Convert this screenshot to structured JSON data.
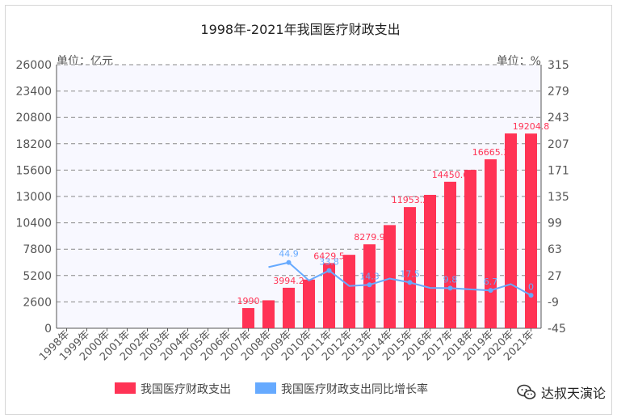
{
  "chart_data": {
    "type": "bar",
    "title": "1998年-2021年我国医疗财政支出",
    "left_unit": "单位：亿元",
    "right_unit": "单位：%",
    "categories": [
      "1998年",
      "1999年",
      "2000年",
      "2001年",
      "2002年",
      "2003年",
      "2004年",
      "2005年",
      "2006年",
      "2007年",
      "2008年",
      "2009年",
      "2010年",
      "2011年",
      "2012年",
      "2013年",
      "2014年",
      "2015年",
      "2016年",
      "2017年",
      "2018年",
      "2019年",
      "2020年",
      "2021年"
    ],
    "ylim_left": [
      0,
      26000
    ],
    "yticks_left": [
      0,
      2600,
      5200,
      7800,
      10400,
      13000,
      15600,
      18200,
      20800,
      23400,
      26000
    ],
    "ylim_right": [
      -45,
      315
    ],
    "yticks_right": [
      -45,
      -9,
      27,
      63,
      99,
      135,
      171,
      207,
      243,
      279,
      315
    ],
    "series": [
      {
        "name": "我国医疗财政支出",
        "type": "bar",
        "color": "#ff3355",
        "values": [
          null,
          null,
          null,
          null,
          null,
          null,
          null,
          null,
          null,
          1990,
          2757,
          3994.2,
          4804.2,
          6429.5,
          7245.1,
          8279.9,
          10176.8,
          11953.2,
          13158.8,
          14450.6,
          15623.6,
          16665.3,
          19216.2,
          19204.8
        ],
        "labels": [
          "",
          "",
          "",
          "",
          "",
          "",
          "",
          "",
          "",
          "1990",
          "",
          "3994.2",
          "",
          "6429.5",
          "",
          "8279.9",
          "",
          "11953.2",
          "",
          "14450.6",
          "",
          "16665.3",
          "",
          "19204.8"
        ]
      },
      {
        "name": "我国医疗财政支出同比增长率",
        "type": "line",
        "color": "#66aaff",
        "values": [
          null,
          null,
          null,
          null,
          null,
          null,
          null,
          null,
          null,
          null,
          38.5,
          44.9,
          20.3,
          33.8,
          12.7,
          14.3,
          22.9,
          17.5,
          10.1,
          9.8,
          8.1,
          6.7,
          15.3,
          0
        ],
        "labels": [
          "",
          "",
          "",
          "",
          "",
          "",
          "",
          "",
          "",
          "",
          "",
          "44.9",
          "",
          "33.8",
          "",
          "14.3",
          "",
          "17.5",
          "",
          "9.8",
          "",
          "6.7",
          "",
          "0"
        ],
        "marked": [
          false,
          false,
          false,
          false,
          false,
          false,
          false,
          false,
          false,
          false,
          false,
          true,
          false,
          true,
          false,
          true,
          false,
          true,
          false,
          true,
          false,
          true,
          false,
          true
        ]
      }
    ],
    "legend": [
      "我国医疗财政支出",
      "我国医疗财政支出同比增长率"
    ],
    "legend_position": "bottom",
    "grid": true
  },
  "watermark": "达叔天演论"
}
